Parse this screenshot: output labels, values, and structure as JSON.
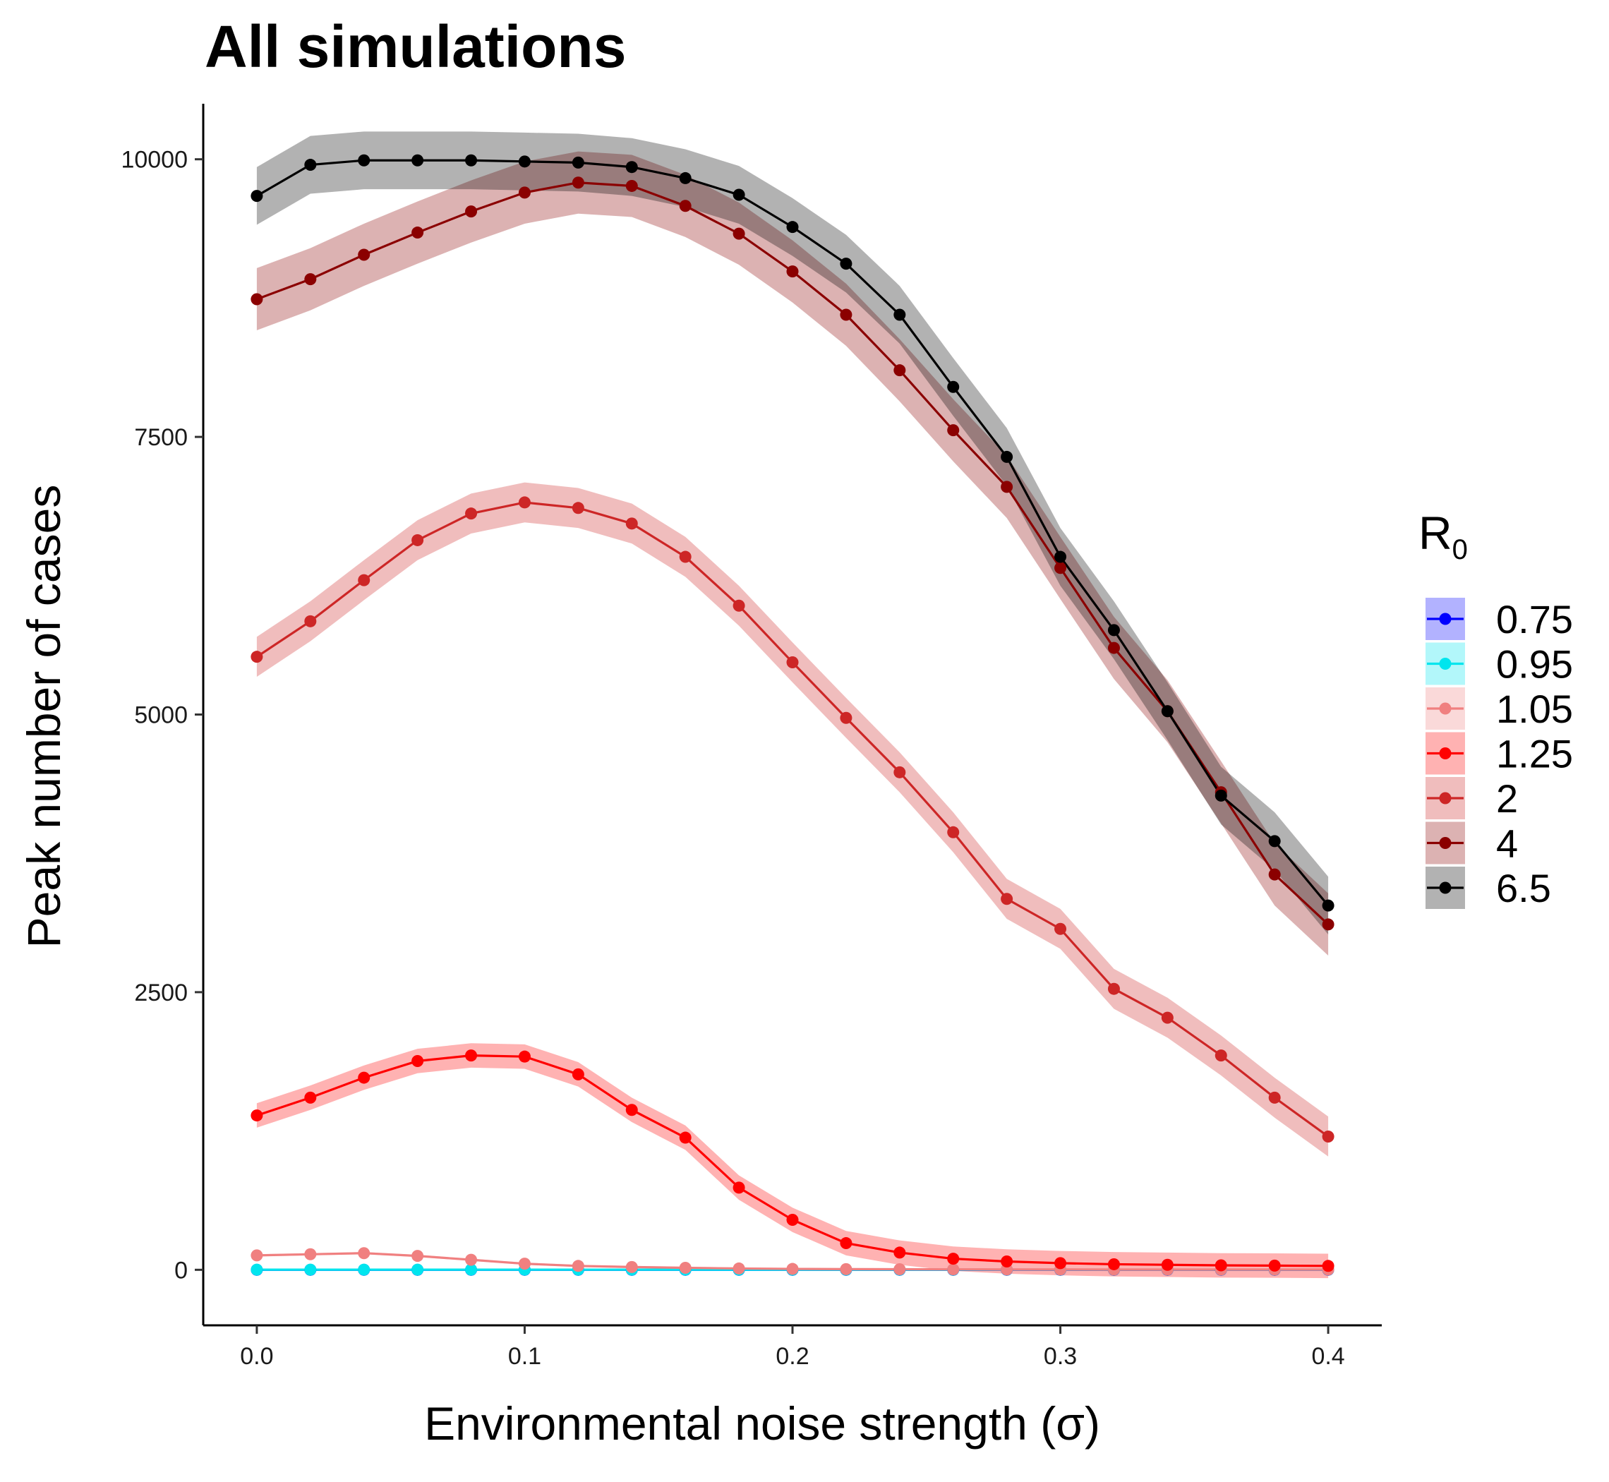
{
  "chart_data": {
    "type": "line",
    "title": "All simulations",
    "xlabel": "Environmental noise strength (σ)",
    "ylabel": "Peak number of cases",
    "xlim": [
      -0.02,
      0.42
    ],
    "ylim": [
      -500,
      10500
    ],
    "x_ticks": [
      0.0,
      0.1,
      0.2,
      0.3,
      0.4
    ],
    "x_tick_labels": [
      "0.0",
      "0.1",
      "0.2",
      "0.3",
      "0.4"
    ],
    "y_ticks": [
      0,
      2500,
      5000,
      7500,
      10000
    ],
    "y_tick_labels": [
      "0",
      "2500",
      "5000",
      "7500",
      "10000"
    ],
    "grid": false,
    "legend": {
      "title": "R",
      "title_subscript": "0",
      "position": "right"
    },
    "x": [
      0.0,
      0.02,
      0.04,
      0.06,
      0.08,
      0.1,
      0.12,
      0.14,
      0.16,
      0.18,
      0.2,
      0.22,
      0.24,
      0.26,
      0.28,
      0.3,
      0.32,
      0.34,
      0.36,
      0.38,
      0.4
    ],
    "series": [
      {
        "name": "0.75",
        "color": "#0000ff",
        "values": [
          0,
          0,
          0,
          0,
          0,
          0,
          0,
          0,
          0,
          0,
          0,
          0,
          0,
          0,
          0,
          0,
          0,
          0,
          0,
          0,
          0
        ],
        "ribbon": 0
      },
      {
        "name": "0.95",
        "color": "#00e5ee",
        "values": [
          1,
          1,
          1,
          1,
          1,
          1,
          1,
          1,
          1,
          1,
          1,
          1,
          1,
          1,
          1,
          1,
          1,
          1,
          1,
          1,
          1
        ],
        "ribbon": 0
      },
      {
        "name": "1.05",
        "color": "#f08080",
        "values": [
          130,
          140,
          150,
          125,
          90,
          55,
          35,
          25,
          18,
          12,
          8,
          6,
          5,
          4,
          3,
          3,
          2,
          2,
          2,
          2,
          2
        ],
        "ribbon": 10
      },
      {
        "name": "1.25",
        "color": "#ff0000",
        "values": [
          1390,
          1550,
          1730,
          1880,
          1930,
          1920,
          1760,
          1440,
          1190,
          740,
          450,
          240,
          155,
          100,
          75,
          60,
          50,
          45,
          40,
          38,
          35
        ],
        "ribbon": 110
      },
      {
        "name": "2",
        "color": "#cd2626",
        "values": [
          5520,
          5840,
          6210,
          6570,
          6810,
          6910,
          6860,
          6720,
          6420,
          5980,
          5470,
          4970,
          4480,
          3940,
          3340,
          3070,
          2530,
          2270,
          1930,
          1550,
          1200
        ],
        "ribbon": 180
      },
      {
        "name": "4",
        "color": "#8b0000",
        "values": [
          8740,
          8920,
          9140,
          9340,
          9530,
          9700,
          9790,
          9760,
          9580,
          9330,
          8990,
          8600,
          8100,
          7560,
          7050,
          6320,
          5600,
          5030,
          4300,
          3560,
          3110
        ],
        "ribbon": 280
      },
      {
        "name": "6.5",
        "color": "#000000",
        "values": [
          9670,
          9950,
          9990,
          9990,
          9990,
          9980,
          9970,
          9930,
          9830,
          9680,
          9390,
          9060,
          8600,
          7950,
          7320,
          6420,
          5760,
          5030,
          4270,
          3860,
          3280
        ],
        "ribbon": 260
      }
    ]
  }
}
